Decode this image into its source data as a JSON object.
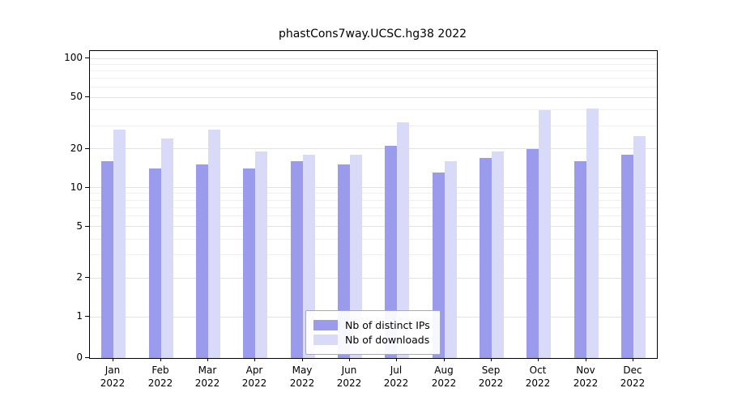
{
  "chart_data": {
    "type": "bar",
    "title": "phastCons7way.UCSC.hg38 2022",
    "categories": [
      [
        "Jan",
        "2022"
      ],
      [
        "Feb",
        "2022"
      ],
      [
        "Mar",
        "2022"
      ],
      [
        "Apr",
        "2022"
      ],
      [
        "May",
        "2022"
      ],
      [
        "Jun",
        "2022"
      ],
      [
        "Jul",
        "2022"
      ],
      [
        "Aug",
        "2022"
      ],
      [
        "Sep",
        "2022"
      ],
      [
        "Oct",
        "2022"
      ],
      [
        "Nov",
        "2022"
      ],
      [
        "Dec",
        "2022"
      ]
    ],
    "series": [
      {
        "name": "Nb of distinct IPs",
        "color": "#9b9bee",
        "values": [
          16,
          14,
          15,
          14,
          16,
          15,
          21,
          13,
          17,
          20,
          16,
          18
        ]
      },
      {
        "name": "Nb of downloads",
        "color": "#d9daf7",
        "values": [
          28,
          24,
          28,
          19,
          18,
          18,
          32,
          16,
          19,
          40,
          41,
          25
        ]
      }
    ],
    "yscale": "symlog",
    "yticks": [
      0,
      1,
      2,
      5,
      10,
      20,
      50,
      100
    ],
    "ylim": [
      0,
      114
    ],
    "xlabel": "",
    "ylabel": "",
    "grid": "horizontal, light gray, log minor lines",
    "legend_position": "lower center inside plot",
    "colors": {
      "axis": "#000000",
      "grid_major": "#e2e2e2",
      "grid_minor": "#efefef",
      "legend_border": "#aaaaaa",
      "background": "#ffffff"
    }
  }
}
